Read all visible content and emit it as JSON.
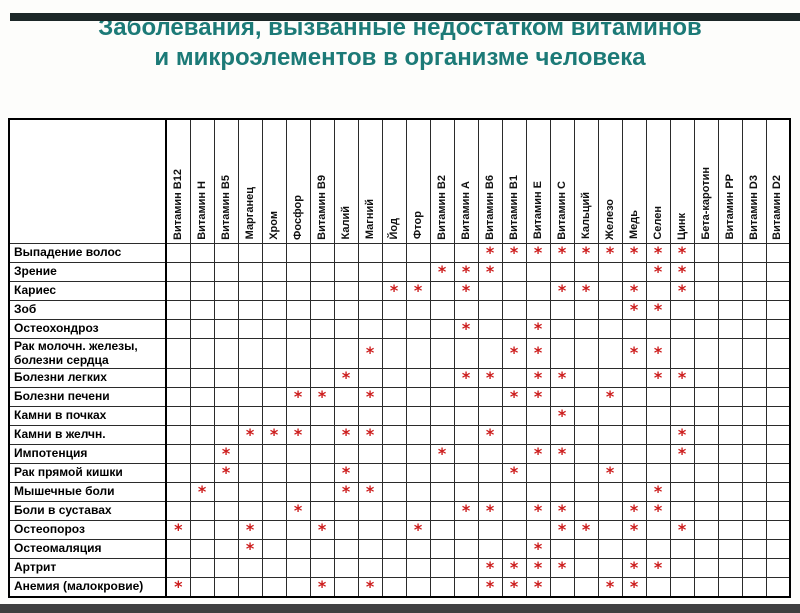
{
  "slide": {
    "title_line1": "Заболевания, вызванные недостатком витаминов",
    "title_line2": "и микроэлементов в организме человека"
  },
  "colors": {
    "title": "#1c7a77",
    "mark": "#cc1a1a",
    "grid": "#2b2b2b",
    "outer_border": "#000000",
    "top_bar": "#1c2727",
    "bottom_bar": "#3f3f3f"
  },
  "table": {
    "mark_symbol": "*",
    "columns": [
      "Витамин B12",
      "Витамин H",
      "Витамин B5",
      "Марганец",
      "Хром",
      "Фосфор",
      "Витамин B9",
      "Калий",
      "Магний",
      "Йод",
      "Фтор",
      "Витамин B2",
      "Витамин A",
      "Витамин B6",
      "Витамин B1",
      "Витамин E",
      "Витамин C",
      "Кальций",
      "Железо",
      "Медь",
      "Селен",
      "Цинк",
      "Бета-каротин",
      "Витамин PP",
      "Витамин D3",
      "Витамин D2"
    ],
    "rows": [
      {
        "label": "Выпадение волос",
        "marks": [
          14,
          15,
          16,
          17,
          18,
          19,
          20,
          21,
          22
        ]
      },
      {
        "label": "Зрение",
        "marks": [
          12,
          13,
          14,
          21,
          22
        ]
      },
      {
        "label": "Кариес",
        "marks": [
          10,
          11,
          13,
          17,
          18,
          20,
          22
        ]
      },
      {
        "label": "Зоб",
        "marks": [
          20,
          21
        ]
      },
      {
        "label": "Остеохондроз",
        "marks": [
          13,
          16
        ]
      },
      {
        "label": "Рак молочн. железы, болезни сердца",
        "marks": [
          9,
          15,
          16,
          20,
          21
        ],
        "tall": true
      },
      {
        "label": "Болезни легких",
        "marks": [
          8,
          13,
          14,
          16,
          17,
          21,
          22
        ]
      },
      {
        "label": "Болезни печени",
        "marks": [
          6,
          7,
          9,
          15,
          16,
          19
        ]
      },
      {
        "label": "Камни в почках",
        "marks": [
          17
        ]
      },
      {
        "label": "Камни в желчн.",
        "marks": [
          4,
          5,
          6,
          8,
          9,
          14,
          22
        ]
      },
      {
        "label": "Импотенция",
        "marks": [
          3,
          12,
          16,
          17,
          22
        ]
      },
      {
        "label": "Рак прямой кишки",
        "marks": [
          3,
          8,
          15,
          19
        ]
      },
      {
        "label": "Мышечные боли",
        "marks": [
          2,
          8,
          9,
          21
        ]
      },
      {
        "label": "Боли в суставах",
        "marks": [
          6,
          13,
          14,
          16,
          17,
          20,
          21
        ]
      },
      {
        "label": "Остеопороз",
        "marks": [
          1,
          4,
          7,
          11,
          17,
          18,
          20,
          22
        ]
      },
      {
        "label": "Остеомаляция",
        "marks": [
          4,
          16
        ]
      },
      {
        "label": "Артрит",
        "marks": [
          14,
          15,
          16,
          17,
          20,
          21
        ]
      },
      {
        "label": "Анемия (малокровие)",
        "marks": [
          1,
          7,
          9,
          14,
          15,
          16,
          19,
          20
        ]
      }
    ]
  }
}
